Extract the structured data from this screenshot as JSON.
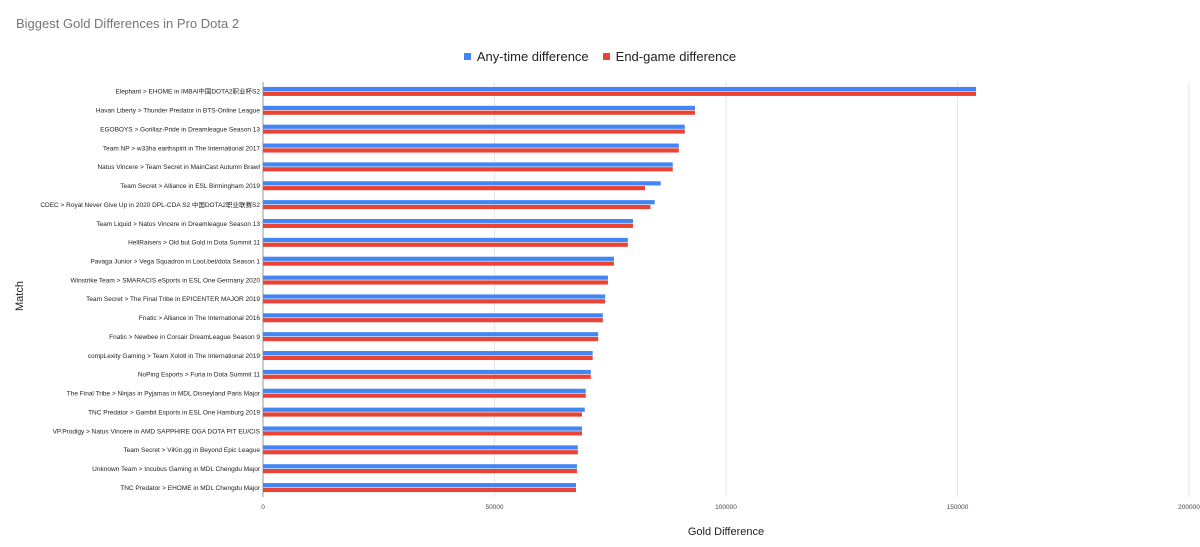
{
  "chart_data": {
    "type": "bar",
    "orientation": "horizontal",
    "title": "Biggest Gold Differences in Pro Dota 2",
    "xlabel": "Gold Difference",
    "ylabel": "Match",
    "xlim": [
      0,
      200000
    ],
    "xticks": [
      0,
      50000,
      100000,
      150000,
      200000
    ],
    "grid": true,
    "legend_position": "top",
    "categories": [
      "Elephant > EHOME in IMBAl中国DOTA2职业杯S2",
      "Havan Liberty > Thunder Predator in BTS-Online League",
      "EGOBOYS > Gorillaz-Pride in Dreamleague Season 13",
      "Team NP > w33ha earthspirit in The International 2017",
      "Natus Vincere > Team Secret in MainCast Autumn Brawl",
      "Team Secret > Alliance in ESL Birmingham 2019",
      "CDEC > Royal Never Give Up in 2020 DPL-CDA S2 中国DOTA2职业联赛S2",
      "Team Liquid > Natus Vincere in Dreamleague Season 13",
      "HellRaisers > Old but Gold in Dota Summit 11",
      "Pavaga Junior > Vega Squadron in Loot.bet/dota Season 1",
      "Winstrike Team > SMARACIS eSports in ESL One Germany 2020",
      "Team Secret > The Final Tribe in EPICENTER MAJOR 2019",
      "Fnatic > Alliance in The International 2016",
      "Fnatic > Newbee in Corsair DreamLeague Season 9",
      "compLexity Gaming > Team Xolotl in The International 2019",
      "NoPing Esports > Furia in Dota Summit 11",
      "The Final Tribe > Ninjas in Pyjamas in MDL Disneyland Paris Major",
      "TNC Predator > Gambit Esports in ESL One Hamburg 2019",
      "VP.Prodigy > Natus Vincere in AMD SAPPHIRE OGA DOTA PIT EU/CIS",
      "Team Secret > ViKin.gg in Beyond Epic League",
      "Unknown Team > Incubus Gaming in MDL Chengdu Major",
      "TNC Predator > EHOME in MDL Chengdu Major"
    ],
    "series": [
      {
        "name": "Any-time difference",
        "color": "#4285f4",
        "values": [
          154000,
          93300,
          91100,
          89800,
          88500,
          85900,
          84600,
          79900,
          78800,
          75800,
          74500,
          73900,
          73400,
          72400,
          71200,
          70800,
          69700,
          69500,
          68900,
          68000,
          67800,
          67600
        ]
      },
      {
        "name": "End-game difference",
        "color": "#ea4335",
        "values": [
          154000,
          93300,
          91100,
          89800,
          88500,
          82500,
          83700,
          79900,
          78800,
          75800,
          74500,
          73900,
          73400,
          72400,
          71200,
          70800,
          69700,
          68900,
          68900,
          68000,
          67800,
          67600
        ]
      }
    ]
  }
}
